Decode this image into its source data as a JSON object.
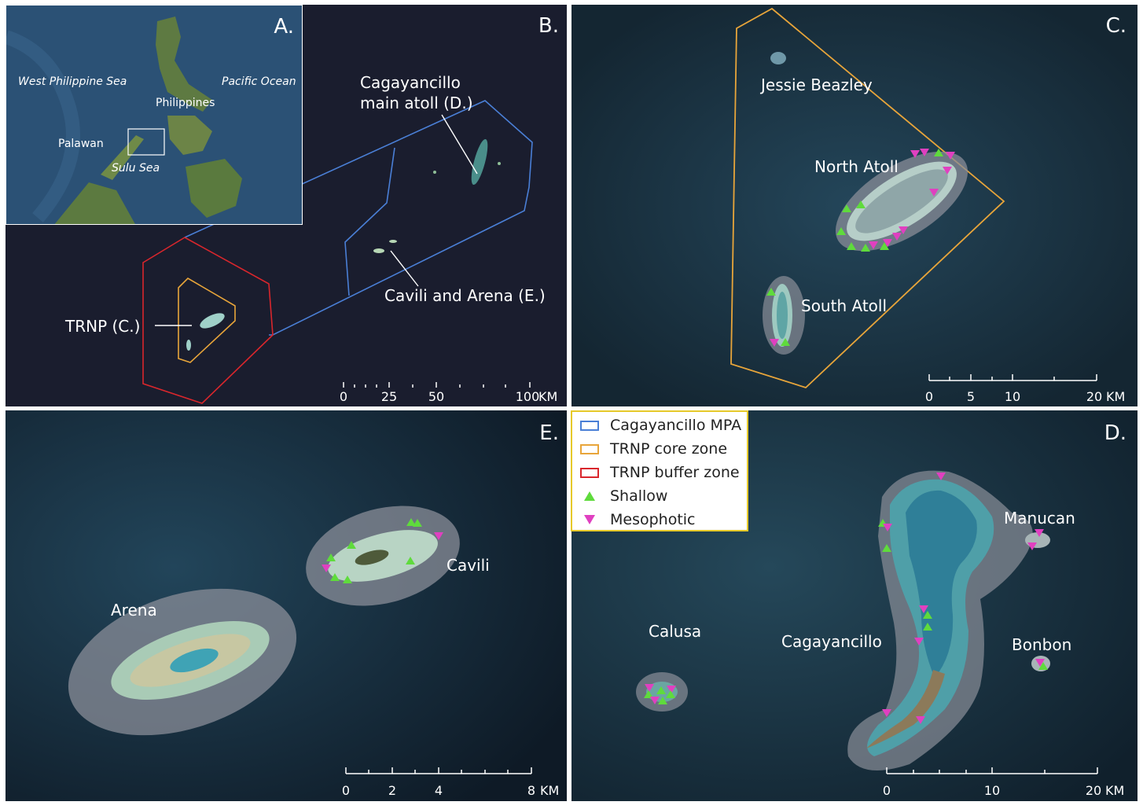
{
  "panels": {
    "a": {
      "label": "A.",
      "west_sea": "West Philippine Sea",
      "pacific": "Pacific Ocean",
      "philippines": "Philippines",
      "palawan": "Palawan",
      "sulu": "Sulu Sea"
    },
    "b": {
      "label": "B.",
      "cagayancillo": "Cagayancillo",
      "cagayancillo2": "main atoll (D.)",
      "cavili_arena": "Cavili and Arena (E.)",
      "trnp": "TRNP (C.)",
      "scale": [
        "0",
        "25",
        "50",
        "100"
      ],
      "scale_unit": "KM"
    },
    "c": {
      "label": "C.",
      "jessie": "Jessie Beazley",
      "north": "North Atoll",
      "south": "South Atoll",
      "scale": [
        "0",
        "5",
        "10",
        "20"
      ],
      "scale_unit": "KM"
    },
    "e": {
      "label": "E.",
      "arena": "Arena",
      "cavili": "Cavili",
      "scale": [
        "0",
        "2",
        "4",
        "8"
      ],
      "scale_unit": "KM"
    },
    "d": {
      "label": "D.",
      "manucan": "Manucan",
      "calusa": "Calusa",
      "cagayancillo": "Cagayancillo",
      "bonbon": "Bonbon",
      "scale": [
        "0",
        "10",
        "20"
      ],
      "scale_unit": "KM"
    }
  },
  "legend": {
    "items": [
      {
        "label": "Cagayancillo MPA",
        "kind": "box",
        "color": "#4a7fd6"
      },
      {
        "label": "TRNP core zone",
        "kind": "box",
        "color": "#e8a53a"
      },
      {
        "label": "TRNP buffer zone",
        "kind": "box",
        "color": "#d9262c"
      },
      {
        "label": "Shallow",
        "kind": "up",
        "color": "#5fdb3c"
      },
      {
        "label": "Mesophotic",
        "kind": "down",
        "color": "#e040c0"
      }
    ]
  },
  "colors": {
    "ocean_dark": "#14202e",
    "ocean_sat": "#1c3a48",
    "shallow": "#5fdb3c",
    "mesophotic": "#e040c0"
  }
}
